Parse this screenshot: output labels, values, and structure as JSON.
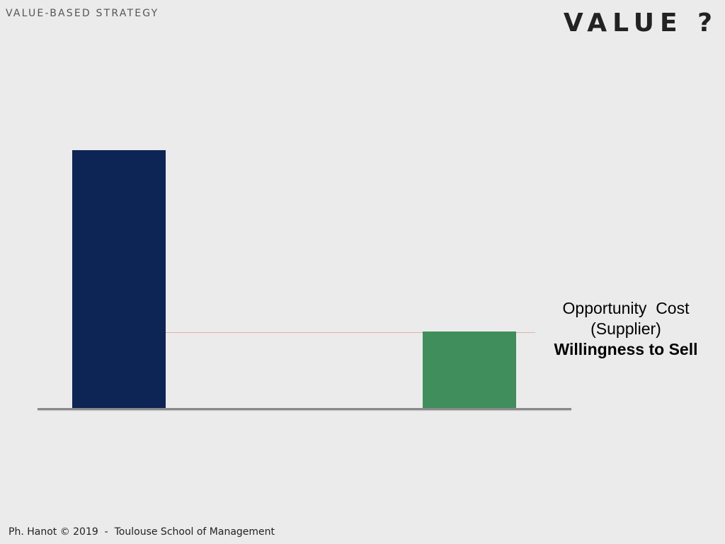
{
  "header": {
    "section": "VALUE-BASED STRATEGY",
    "title": "VALUE ?"
  },
  "diagram": {
    "annotation": {
      "line1": "Opportunity  Cost",
      "line2": "(Supplier)",
      "line3": "Willingness to Sell"
    },
    "colors": {
      "left_bar": "#0d2554",
      "right_bar": "#3f8e5b",
      "guide_line": "#d9b6a8",
      "baseline": "#8a8a8a"
    }
  },
  "footer": {
    "credit": "Ph. Hanot © 2019  -  Toulouse School of Management"
  }
}
